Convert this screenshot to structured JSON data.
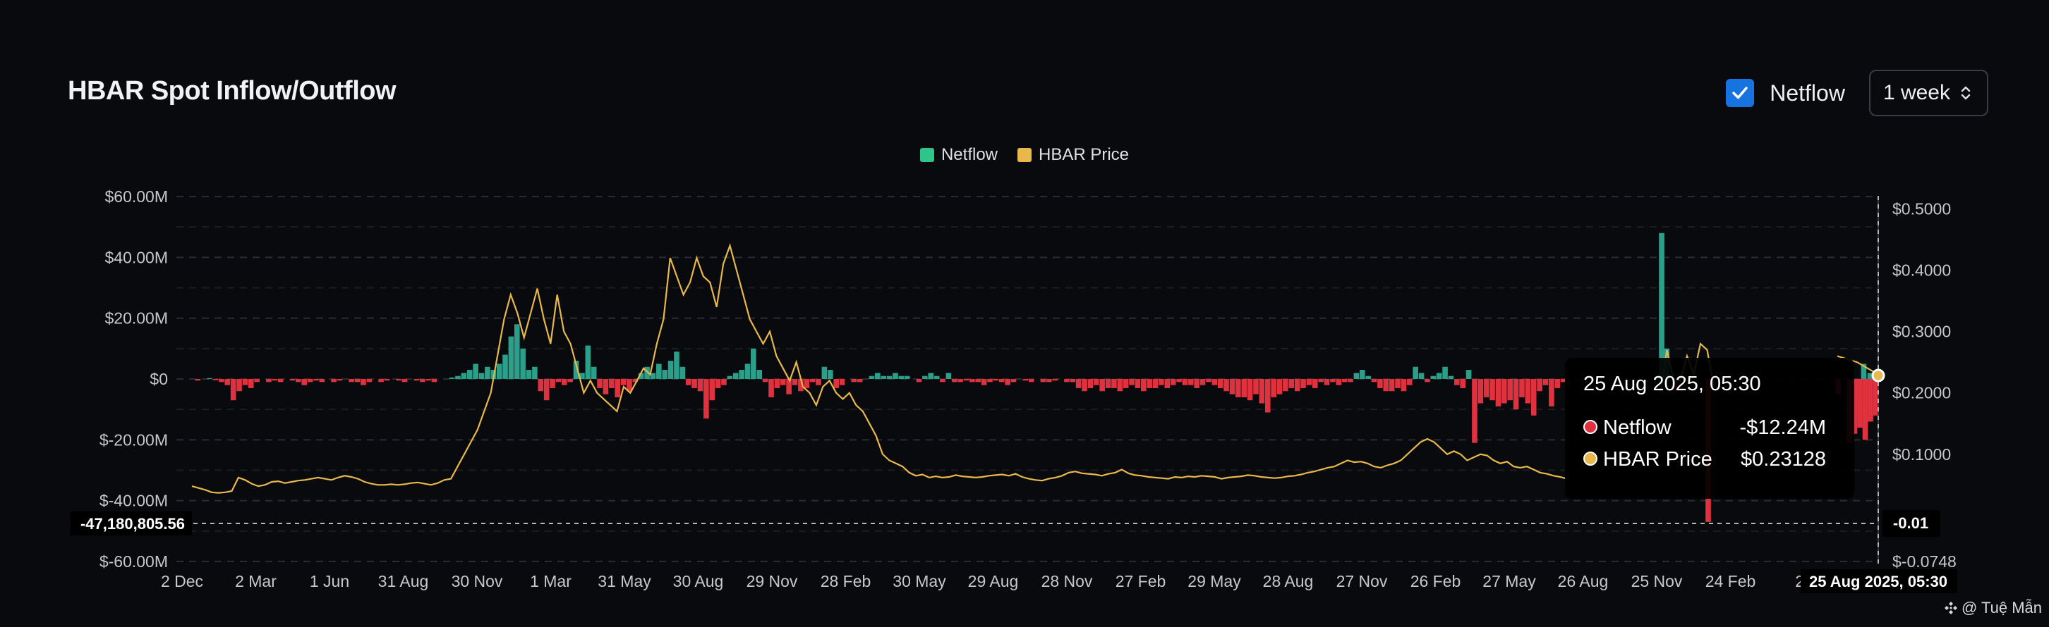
{
  "header": {
    "title": "HBAR Spot Inflow/Outflow",
    "checkbox_label": "Netflow",
    "interval": "1 week"
  },
  "legend": [
    {
      "label": "Netflow",
      "color": "#2fc48a"
    },
    {
      "label": "HBAR Price",
      "color": "#e8b84a"
    }
  ],
  "colors": {
    "positive": "#2aa08a",
    "negative": "#e0313f",
    "price": "#e8b84a",
    "grid": "#2a2c33",
    "background": "#090a0e"
  },
  "crosshair": {
    "y_label": "-47,180,805.56",
    "y2_label": "-0.01",
    "x_label": "25 Aug 2025, 05:30"
  },
  "tooltip": {
    "date": "25 Aug 2025, 05:30",
    "rows": [
      {
        "label": "Netflow",
        "value": "-$12.24M",
        "color": "#e0313f"
      },
      {
        "label": "HBAR Price",
        "value": "$0.23128",
        "color": "#e8b84a"
      }
    ]
  },
  "watermark": "@ Tuệ Mẫn",
  "chart_data": {
    "type": "bar",
    "title": "HBAR Spot Inflow/Outflow",
    "x_tick_labels": [
      "2 Dec",
      "2 Mar",
      "1 Jun",
      "31 Aug",
      "30 Nov",
      "1 Mar",
      "31 May",
      "30 Aug",
      "29 Nov",
      "28 Feb",
      "30 May",
      "29 Aug",
      "28 Nov",
      "27 Feb",
      "29 May",
      "28 Aug",
      "27 Nov",
      "26 Feb",
      "27 May",
      "26 Aug",
      "25 Nov",
      "24 Feb",
      "26"
    ],
    "y_left": {
      "ticks": [
        "$60.00M",
        "$40.00M",
        "$20.00M",
        "$0",
        "$-20.00M",
        "$-40.00M",
        "$-60.00M"
      ],
      "range": [
        -60,
        60
      ],
      "unit": "$M"
    },
    "y_right": {
      "ticks": [
        "$0.5000",
        "$0.4000",
        "$0.3000",
        "$0.2000",
        "$0.1000",
        "$-0.0748"
      ],
      "range": [
        -0.0748,
        0.52
      ]
    },
    "series": [
      {
        "name": "Netflow",
        "type": "bar",
        "values": [
          0,
          -0.5,
          0,
          0.3,
          -0.4,
          -1,
          -2,
          -7,
          -4,
          -2,
          -3,
          -1,
          0,
          -1,
          -0.5,
          -1,
          0,
          -0.5,
          -1,
          -2,
          -1,
          -0.5,
          -1,
          0,
          -1,
          -0.5,
          0,
          -1,
          -1,
          -2,
          -1,
          0,
          -1,
          -0.5,
          0,
          -0.5,
          -1,
          0,
          -0.5,
          -1,
          -0.5,
          -1,
          0,
          0,
          0.5,
          1,
          2,
          3,
          5,
          2,
          4,
          3,
          5,
          8,
          14,
          18,
          10,
          3,
          4,
          -4,
          -7,
          -3,
          -1,
          -2,
          -1,
          6,
          2,
          11,
          4,
          -3,
          -5,
          -3,
          -6,
          -2,
          -4,
          -1,
          2,
          4,
          2,
          5,
          3,
          6,
          9,
          4,
          -2,
          -3,
          -4,
          -13,
          -7,
          -3,
          -2,
          1,
          2,
          3,
          5,
          10,
          3,
          -1,
          -6,
          -3,
          -2,
          -5,
          -2,
          -4,
          -3,
          -1,
          -2,
          4,
          3,
          -3,
          -2,
          0,
          -1,
          -1,
          0,
          1,
          2,
          1,
          1,
          2,
          1,
          1,
          0,
          -1,
          1,
          2,
          1,
          -1,
          2,
          -1,
          -1,
          -0.5,
          -1,
          -1,
          -2,
          -1,
          -0.5,
          -1,
          -2,
          -1,
          0,
          -0.5,
          -1,
          0,
          -1,
          -1,
          -0.5,
          0,
          -1,
          -1,
          -3,
          -4,
          -3,
          -2,
          -4,
          -3,
          -3,
          -4,
          -3,
          -2,
          -3,
          -4,
          -3,
          -3,
          -2,
          -3,
          -2,
          -1,
          -2,
          -2,
          -3,
          -2,
          -1,
          -2,
          -3,
          -4,
          -5,
          -6,
          -6,
          -7,
          -5,
          -8,
          -11,
          -6,
          -5,
          -4,
          -3,
          -4,
          -3,
          -2,
          -3,
          -1,
          -2,
          -1,
          -2,
          -1,
          -1,
          2,
          3,
          1,
          -1,
          -3,
          -4,
          -4,
          -3,
          -4,
          -2,
          4,
          2,
          -1,
          1,
          2,
          4,
          1,
          -2,
          -3,
          3,
          -21,
          -8,
          -6,
          -7,
          -9,
          -8,
          -7,
          -10,
          -6,
          -8,
          -12,
          -4,
          -2,
          -9,
          -3,
          -1
        ],
        "extras": [
          {
            "x_index": 254,
            "value": 48
          },
          {
            "x_index": 254.8,
            "value": 10
          },
          {
            "x_index": 256,
            "value": -4
          },
          {
            "x_index": 262,
            "value": -47
          },
          {
            "x_index": 266,
            "value": -5
          },
          {
            "x_index": 269,
            "value": -9
          },
          {
            "x_index": 270,
            "value": 5
          },
          {
            "x_index": 271,
            "value": 2
          }
        ]
      },
      {
        "name": "HBAR Price",
        "type": "line",
        "values": [
          0.048,
          0.045,
          0.042,
          0.038,
          0.037,
          0.038,
          0.04,
          0.062,
          0.058,
          0.052,
          0.048,
          0.05,
          0.055,
          0.056,
          0.053,
          0.055,
          0.057,
          0.058,
          0.06,
          0.062,
          0.06,
          0.058,
          0.062,
          0.065,
          0.063,
          0.06,
          0.055,
          0.052,
          0.05,
          0.05,
          0.051,
          0.05,
          0.051,
          0.053,
          0.054,
          0.052,
          0.05,
          0.053,
          0.058,
          0.06,
          0.08,
          0.1,
          0.12,
          0.14,
          0.17,
          0.2,
          0.26,
          0.32,
          0.36,
          0.33,
          0.29,
          0.33,
          0.37,
          0.32,
          0.28,
          0.36,
          0.3,
          0.28,
          0.24,
          0.2,
          0.22,
          0.2,
          0.19,
          0.18,
          0.17,
          0.21,
          0.2,
          0.22,
          0.24,
          0.23,
          0.28,
          0.32,
          0.42,
          0.39,
          0.36,
          0.38,
          0.42,
          0.39,
          0.38,
          0.34,
          0.41,
          0.44,
          0.4,
          0.36,
          0.32,
          0.3,
          0.28,
          0.3,
          0.26,
          0.24,
          0.22,
          0.25,
          0.21,
          0.2,
          0.18,
          0.21,
          0.22,
          0.2,
          0.19,
          0.2,
          0.18,
          0.17,
          0.15,
          0.13,
          0.1,
          0.09,
          0.085,
          0.08,
          0.07,
          0.065,
          0.067,
          0.062,
          0.064,
          0.062,
          0.063,
          0.066,
          0.064,
          0.063,
          0.062,
          0.063,
          0.065,
          0.066,
          0.067,
          0.065,
          0.068,
          0.063,
          0.06,
          0.058,
          0.057,
          0.06,
          0.062,
          0.065,
          0.07,
          0.072,
          0.069,
          0.068,
          0.067,
          0.065,
          0.068,
          0.07,
          0.075,
          0.069,
          0.066,
          0.065,
          0.063,
          0.062,
          0.061,
          0.06,
          0.063,
          0.062,
          0.064,
          0.063,
          0.065,
          0.064,
          0.063,
          0.06,
          0.062,
          0.063,
          0.064,
          0.066,
          0.065,
          0.063,
          0.062,
          0.061,
          0.062,
          0.064,
          0.065,
          0.067,
          0.07,
          0.072,
          0.075,
          0.078,
          0.08,
          0.085,
          0.09,
          0.087,
          0.088,
          0.085,
          0.08,
          0.078,
          0.082,
          0.085,
          0.09,
          0.1,
          0.11,
          0.12,
          0.125,
          0.12,
          0.11,
          0.1,
          0.105,
          0.1,
          0.09,
          0.095,
          0.1,
          0.098,
          0.09,
          0.085,
          0.088,
          0.08,
          0.078,
          0.08,
          0.075,
          0.07,
          0.068,
          0.065,
          0.063,
          0.06
        ],
        "extras": [
          {
            "x_index": 254,
            "values": [
              0.2,
              0.27,
              0.22,
              0.22,
              0.26,
              0.23,
              0.28,
              0.27,
              0.21
            ]
          },
          {
            "x_index": 269,
            "values": [
              0.26,
              0.25,
              0.23128
            ]
          }
        ]
      }
    ],
    "grid": true,
    "legend_position": "top-center"
  }
}
